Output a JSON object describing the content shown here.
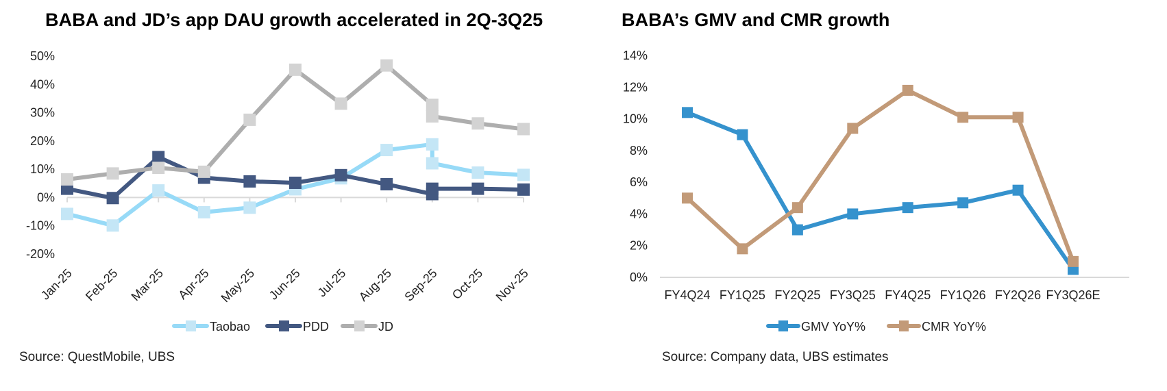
{
  "left": {
    "title": "BABA and JD’s app DAU growth accelerated in 2Q-3Q25",
    "source": "Source: QuestMobile, UBS"
  },
  "right": {
    "title": "BABA’s GMV and CMR growth",
    "source": "Source: Company data, UBS estimates"
  },
  "chart_data": [
    {
      "type": "line",
      "title": "BABA and JD’s app DAU growth accelerated in 2Q-3Q25",
      "xlabel": "",
      "ylabel": "",
      "categories": [
        "Jan-25",
        "Feb-25",
        "Mar-25",
        "Apr-25",
        "May-25",
        "Jun-25",
        "Jul-25",
        "Aug-25",
        "Sep-25",
        "Oct-25",
        "Nov-25"
      ],
      "ylim": [
        -20,
        50
      ],
      "yticks": [
        -20,
        -10,
        0,
        10,
        20,
        30,
        40,
        50
      ],
      "ytick_labels": [
        "-20%",
        "-10%",
        "0%",
        "10%",
        "20%",
        "30%",
        "40%",
        "50%"
      ],
      "grid": false,
      "legend": "bottom",
      "note": "Series break at Sep-25: each series has two values at Sep-25 (old and revised basis) joined by a vertical segment",
      "series": [
        {
          "name": "Taobao",
          "color": "#97daf7",
          "marker_color": "#c4e6f6",
          "points": [
            {
              "x": 0,
              "y": -5.8
            },
            {
              "x": 1,
              "y": -9.9
            },
            {
              "x": 2,
              "y": 2.5
            },
            {
              "x": 3,
              "y": -5.2
            },
            {
              "x": 4,
              "y": -3.6
            },
            {
              "x": 5,
              "y": 2.9
            },
            {
              "x": 6,
              "y": 6.8
            },
            {
              "x": 7,
              "y": 16.8
            },
            {
              "x": 8,
              "y": 18.8
            },
            {
              "x": 8,
              "y": 12.1
            },
            {
              "x": 9,
              "y": 8.8
            },
            {
              "x": 10,
              "y": 8.0
            }
          ]
        },
        {
          "name": "PDD",
          "color": "#435881",
          "marker_color": "#435881",
          "points": [
            {
              "x": 0,
              "y": 3.1
            },
            {
              "x": 1,
              "y": -0.2
            },
            {
              "x": 2,
              "y": 14.3
            },
            {
              "x": 3,
              "y": 7.0
            },
            {
              "x": 4,
              "y": 5.7
            },
            {
              "x": 5,
              "y": 5.2
            },
            {
              "x": 6,
              "y": 7.9
            },
            {
              "x": 7,
              "y": 4.7
            },
            {
              "x": 8,
              "y": 1.2
            },
            {
              "x": 8,
              "y": 3.1
            },
            {
              "x": 9,
              "y": 3.1
            },
            {
              "x": 10,
              "y": 2.8
            }
          ]
        },
        {
          "name": "JD",
          "color": "#aeaeae",
          "marker_color": "#d3d3d3",
          "points": [
            {
              "x": 0,
              "y": 6.4
            },
            {
              "x": 1,
              "y": 8.5
            },
            {
              "x": 2,
              "y": 10.5
            },
            {
              "x": 3,
              "y": 9.1
            },
            {
              "x": 4,
              "y": 27.5
            },
            {
              "x": 5,
              "y": 45.2
            },
            {
              "x": 6,
              "y": 33.2
            },
            {
              "x": 7,
              "y": 46.7
            },
            {
              "x": 8,
              "y": 32.8
            },
            {
              "x": 8,
              "y": 28.7
            },
            {
              "x": 9,
              "y": 26.2
            },
            {
              "x": 10,
              "y": 24.2
            }
          ]
        }
      ]
    },
    {
      "type": "line",
      "title": "BABA’s GMV and CMR growth",
      "xlabel": "",
      "ylabel": "",
      "categories": [
        "FY4Q24",
        "FY1Q25",
        "FY2Q25",
        "FY3Q25",
        "FY4Q25",
        "FY1Q26",
        "FY2Q26",
        "FY3Q26E"
      ],
      "ylim": [
        0,
        14
      ],
      "yticks": [
        0,
        2,
        4,
        6,
        8,
        10,
        12,
        14
      ],
      "ytick_labels": [
        "0%",
        "2%",
        "4%",
        "6%",
        "8%",
        "10%",
        "12%",
        "14%"
      ],
      "grid": false,
      "legend": "bottom",
      "series": [
        {
          "name": "GMV YoY%",
          "color": "#3592cd",
          "marker_color": "#3592cd",
          "values": [
            10.4,
            9.0,
            3.0,
            4.0,
            4.4,
            4.7,
            5.5,
            0.5
          ]
        },
        {
          "name": "CMR YoY%",
          "color": "#c29a78",
          "marker_color": "#c29a78",
          "values": [
            5.0,
            1.8,
            4.4,
            9.4,
            11.8,
            10.1,
            10.1,
            1.0
          ]
        }
      ]
    }
  ]
}
